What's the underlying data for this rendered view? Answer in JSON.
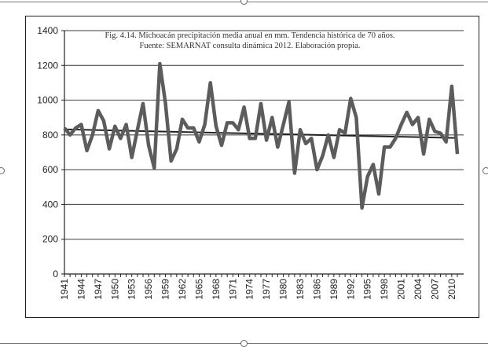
{
  "chart_data": {
    "type": "line",
    "title": "Fig. 4.14. Michoacán precipitación media anual en mm. Tendencia histórica de 70 años.",
    "subtitle": "Fuente: SEMARNAT consulta dinámica 2012. Elaboración propia.",
    "xlabel": "",
    "ylabel": "",
    "ylim": [
      0,
      1400
    ],
    "yticks": [
      "0",
      "200",
      "400",
      "600",
      "800",
      "1000",
      "1200",
      "1400"
    ],
    "xlim": [
      1941,
      2011
    ],
    "xtick_labels": [
      "1941",
      "1944",
      "1947",
      "1950",
      "1953",
      "1956",
      "1959",
      "1962",
      "1965",
      "1968",
      "1971",
      "1974",
      "1977",
      "1980",
      "1983",
      "1986",
      "1989",
      "1992",
      "1995",
      "1998",
      "2001",
      "2004",
      "2007",
      "2010"
    ],
    "grid": true,
    "series": [
      {
        "x": [
          1941,
          1942,
          1943,
          1944,
          1945,
          1946,
          1947,
          1948,
          1949,
          1950,
          1951,
          1952,
          1953,
          1954,
          1955,
          1956,
          1957,
          1958,
          1959,
          1960,
          1961,
          1962,
          1963,
          1964,
          1965,
          1966,
          1967,
          1968,
          1969,
          1970,
          1971,
          1972,
          1973,
          1974,
          1975,
          1976,
          1977,
          1978,
          1979,
          1980,
          1981,
          1982,
          1983,
          1984,
          1985,
          1986,
          1987,
          1988,
          1989,
          1990,
          1991,
          1992,
          1993,
          1994,
          1995,
          1996,
          1997,
          1998,
          1999,
          2000,
          2001,
          2002,
          2003,
          2004,
          2005,
          2006,
          2007,
          2008,
          2009,
          2010,
          2011
        ],
        "values": [
          840,
          800,
          840,
          860,
          710,
          800,
          940,
          880,
          720,
          850,
          780,
          860,
          670,
          830,
          980,
          740,
          610,
          1210,
          980,
          650,
          720,
          890,
          840,
          840,
          760,
          860,
          1100,
          850,
          740,
          870,
          870,
          830,
          960,
          780,
          780,
          980,
          770,
          900,
          730,
          860,
          990,
          580,
          830,
          750,
          780,
          600,
          680,
          800,
          670,
          830,
          810,
          1010,
          900,
          380,
          560,
          630,
          460,
          730,
          730,
          780,
          860,
          930,
          860,
          900,
          690,
          890,
          820,
          810,
          760,
          1080,
          690
        ]
      },
      {
        "name": "",
        "type": "trend",
        "x": [
          1941,
          2011
        ],
        "values": [
          832,
          782
        ]
      }
    ]
  }
}
